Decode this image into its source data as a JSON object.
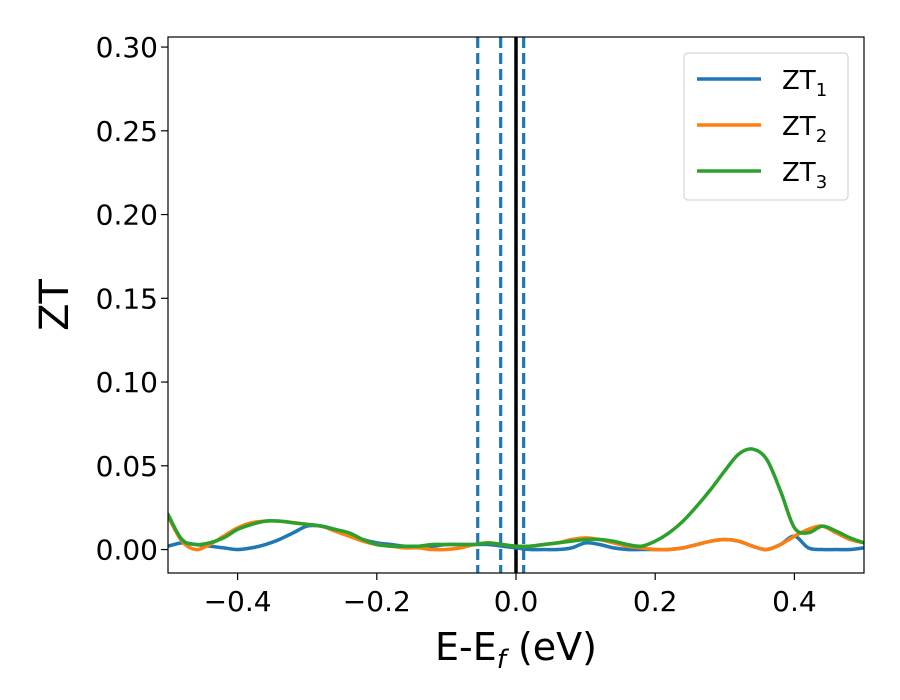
{
  "chart_data": {
    "type": "line",
    "xlabel": "E-E",
    "xlabel_sub": "f",
    "xlabel_unit": " (eV)",
    "ylabel": "ZT",
    "xlim": [
      -0.5,
      0.5
    ],
    "ylim": [
      -0.014,
      0.306
    ],
    "xticks": [
      -0.4,
      -0.2,
      0.0,
      0.2,
      0.4
    ],
    "xtick_labels": [
      "−0.4",
      "−0.2",
      "0.0",
      "0.2",
      "0.4"
    ],
    "yticks": [
      0.0,
      0.05,
      0.1,
      0.15,
      0.2,
      0.25,
      0.3
    ],
    "ytick_labels": [
      "0.00",
      "0.05",
      "0.10",
      "0.15",
      "0.20",
      "0.25",
      "0.30"
    ],
    "legend_position": "top-right",
    "colors": {
      "ZT1": "#1f77b4",
      "ZT2": "#ff7f0e",
      "ZT3": "#2ca02c",
      "fermi": "#000000"
    },
    "vlines": [
      {
        "x": -0.055,
        "style": "dashed",
        "color": "#1f77b4"
      },
      {
        "x": -0.022,
        "style": "dashed",
        "color": "#1f77b4"
      },
      {
        "x": 0.011,
        "style": "dashed",
        "color": "#1f77b4"
      },
      {
        "x": 0.0,
        "style": "solid",
        "color": "#000000"
      }
    ],
    "series": [
      {
        "name": "ZT",
        "sub": "1",
        "color": "#1f77b4",
        "x": [
          -0.5,
          -0.48,
          -0.46,
          -0.44,
          -0.42,
          -0.4,
          -0.38,
          -0.36,
          -0.34,
          -0.32,
          -0.3,
          -0.28,
          -0.26,
          -0.24,
          -0.22,
          -0.2,
          -0.18,
          -0.16,
          -0.14,
          -0.12,
          -0.1,
          -0.08,
          -0.06,
          -0.04,
          -0.02,
          0.0,
          0.02,
          0.04,
          0.06,
          0.08,
          0.1,
          0.12,
          0.14,
          0.16,
          0.18,
          0.2,
          0.22,
          0.24,
          0.26,
          0.28,
          0.3,
          0.32,
          0.34,
          0.36,
          0.38,
          0.4,
          0.42,
          0.44,
          0.46,
          0.48,
          0.5
        ],
        "y": [
          0.002,
          0.004,
          0.003,
          0.002,
          0.001,
          0.0,
          0.001,
          0.003,
          0.006,
          0.01,
          0.014,
          0.014,
          0.012,
          0.009,
          0.006,
          0.004,
          0.003,
          0.002,
          0.002,
          0.002,
          0.003,
          0.003,
          0.003,
          0.003,
          0.002,
          0.001,
          0.0,
          0.0,
          0.0,
          0.001,
          0.004,
          0.003,
          0.001,
          0.0,
          0.0,
          0.0,
          0.0,
          0.001,
          0.003,
          0.005,
          0.006,
          0.005,
          0.002,
          0.0,
          0.003,
          0.008,
          0.001,
          0.0,
          0.0,
          0.0,
          0.001
        ]
      },
      {
        "name": "ZT",
        "sub": "2",
        "color": "#ff7f0e",
        "x": [
          -0.5,
          -0.48,
          -0.46,
          -0.44,
          -0.42,
          -0.4,
          -0.38,
          -0.36,
          -0.34,
          -0.32,
          -0.3,
          -0.28,
          -0.26,
          -0.24,
          -0.22,
          -0.2,
          -0.18,
          -0.16,
          -0.14,
          -0.12,
          -0.1,
          -0.08,
          -0.06,
          -0.04,
          -0.02,
          0.0,
          0.02,
          0.04,
          0.06,
          0.08,
          0.1,
          0.12,
          0.14,
          0.16,
          0.18,
          0.2,
          0.22,
          0.24,
          0.26,
          0.28,
          0.3,
          0.32,
          0.34,
          0.36,
          0.38,
          0.4,
          0.42,
          0.44,
          0.46,
          0.48,
          0.5
        ],
        "y": [
          0.02,
          0.005,
          0.0,
          0.003,
          0.008,
          0.013,
          0.016,
          0.017,
          0.017,
          0.016,
          0.015,
          0.014,
          0.011,
          0.008,
          0.005,
          0.003,
          0.002,
          0.001,
          0.001,
          0.0,
          0.0,
          0.001,
          0.003,
          0.004,
          0.003,
          0.002,
          0.002,
          0.003,
          0.004,
          0.006,
          0.007,
          0.006,
          0.004,
          0.002,
          0.001,
          0.0,
          0.0,
          0.001,
          0.003,
          0.005,
          0.006,
          0.005,
          0.002,
          0.0,
          0.003,
          0.008,
          0.012,
          0.014,
          0.01,
          0.006,
          0.004
        ]
      },
      {
        "name": "ZT",
        "sub": "3",
        "color": "#2ca02c",
        "x": [
          -0.5,
          -0.48,
          -0.46,
          -0.44,
          -0.42,
          -0.4,
          -0.38,
          -0.36,
          -0.34,
          -0.32,
          -0.3,
          -0.28,
          -0.26,
          -0.24,
          -0.22,
          -0.2,
          -0.18,
          -0.16,
          -0.14,
          -0.12,
          -0.1,
          -0.08,
          -0.06,
          -0.04,
          -0.02,
          0.0,
          0.02,
          0.04,
          0.06,
          0.08,
          0.1,
          0.12,
          0.14,
          0.16,
          0.18,
          0.2,
          0.22,
          0.24,
          0.26,
          0.28,
          0.3,
          0.32,
          0.34,
          0.36,
          0.38,
          0.4,
          0.42,
          0.44,
          0.46,
          0.48,
          0.5
        ],
        "y": [
          0.021,
          0.006,
          0.003,
          0.004,
          0.007,
          0.012,
          0.015,
          0.017,
          0.017,
          0.016,
          0.015,
          0.014,
          0.012,
          0.01,
          0.006,
          0.003,
          0.002,
          0.002,
          0.002,
          0.003,
          0.003,
          0.003,
          0.003,
          0.004,
          0.003,
          0.002,
          0.002,
          0.003,
          0.004,
          0.005,
          0.006,
          0.006,
          0.005,
          0.003,
          0.002,
          0.005,
          0.01,
          0.017,
          0.026,
          0.036,
          0.047,
          0.057,
          0.06,
          0.054,
          0.035,
          0.013,
          0.01,
          0.014,
          0.011,
          0.007,
          0.004
        ]
      }
    ]
  }
}
